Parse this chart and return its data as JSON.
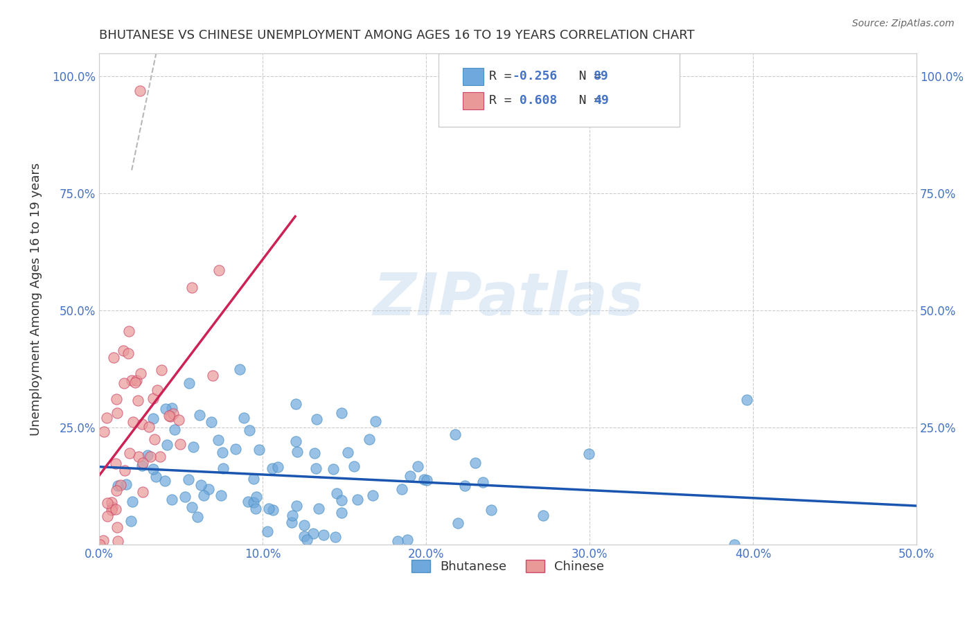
{
  "title": "BHUTANESE VS CHINESE UNEMPLOYMENT AMONG AGES 16 TO 19 YEARS CORRELATION CHART",
  "source": "Source: ZipAtlas.com",
  "xlabel_label": "",
  "ylabel_label": "Unemployment Among Ages 16 to 19 years",
  "xlim": [
    0.0,
    0.5
  ],
  "ylim": [
    0.0,
    1.05
  ],
  "xticks": [
    0.0,
    0.1,
    0.2,
    0.3,
    0.4,
    0.5
  ],
  "yticks": [
    0.0,
    0.25,
    0.5,
    0.75,
    1.0
  ],
  "xtick_labels": [
    "0.0%",
    "10.0%",
    "20.0%",
    "30.0%",
    "40.0%",
    "50.0%"
  ],
  "ytick_labels_left": [
    "",
    "25.0%",
    "50.0%",
    "75.0%",
    "100.0%"
  ],
  "ytick_labels_right": [
    "",
    "25.0%",
    "50.0%",
    "75.0%",
    "100.0%"
  ],
  "bhutanese_color": "#6fa8dc",
  "chinese_color": "#ea9999",
  "bhutanese_edge_color": "#4a90c4",
  "chinese_edge_color": "#cc4466",
  "trend_blue": "#1a56b0",
  "trend_pink": "#cc2255",
  "legend_blue_label": "R = -0.256   N = 89",
  "legend_pink_label": "R =  0.608   N = 49",
  "watermark": "ZIPatlas",
  "bhutanese_R": -0.256,
  "bhutanese_N": 89,
  "chinese_R": 0.608,
  "chinese_N": 49,
  "background_color": "#ffffff",
  "grid_color": "#cccccc"
}
